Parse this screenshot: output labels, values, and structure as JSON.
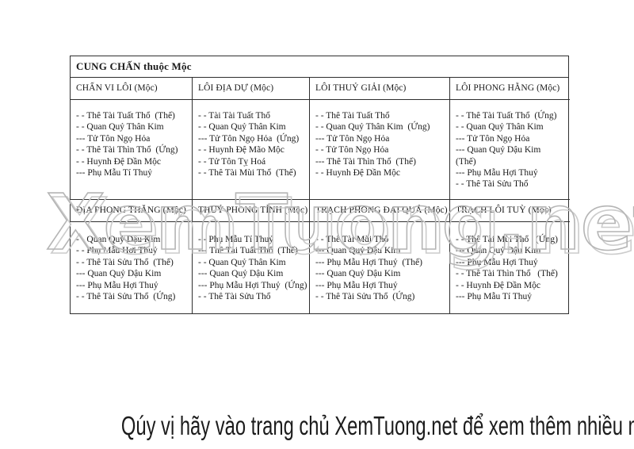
{
  "watermark": {
    "text": "XemTuong.net"
  },
  "footer": {
    "text": "Qúy vị hãy vào trang chủ XemTuong.net để xem thêm nhiều mục hay khác"
  },
  "table": {
    "title": "CUNG CHẤN thuộc Mộc",
    "rows": [
      {
        "cells": [
          {
            "header": "CHẤN VI LÔI (Mộc)",
            "lines": [
              "- - Thê Tài Tuất Thổ  (Thế)",
              "- - Quan Quỷ Thân Kim",
              "--- Tử Tôn Ngọ Hỏa",
              "- - Thê Tài Thìn Thổ  (Ứng)",
              "- - Huynh Đệ Dần Mộc",
              "--- Phụ Mẫu Tí Thuỷ"
            ]
          },
          {
            "header": "LÔI ĐỊA DỰ (Mộc)",
            "lines": [
              "- - Tài Tài Tuất Thổ",
              "- - Quan Quỷ Thân Kim",
              "--- Tử Tôn Ngọ Hỏa  (Ứng)",
              "- - Huynh Đệ Mão Mộc",
              "- - Tử Tôn Tỵ Hoá",
              "- - Thê Tài Mùi Thổ  (Thế)"
            ]
          },
          {
            "header": "LÔI THUỶ GIẢI (Mộc)",
            "lines": [
              "- - Thê Tài Tuất Thổ",
              "- - Quan Quỷ Thân Kim  (Ứng)",
              "--- Tử Tôn Ngọ Hỏa",
              "- - Tử Tôn Ngọ Hỏa",
              "--- Thê Tài Thìn Thổ  (Thế)",
              "- - Huynh Đệ Dần Mộc"
            ]
          },
          {
            "header": "LÔI PHONG HẰNG (Mộc)",
            "lines": [
              "- - Thê Tài Tuất Thổ  (Ứng)",
              "- - Quan Quỷ Thân Kim",
              "--- Tử Tôn Ngọ Hỏa",
              "--- Quan Quỷ Dậu Kim",
              "(Thế)",
              "--- Phụ Mẫu Hợi Thuỷ",
              "- - Thê Tài Sửu Thổ"
            ]
          }
        ]
      },
      {
        "cells": [
          {
            "header": "ĐỊA PHONG THĂNG (Mộc)",
            "lines": [
              "- - Quan Quỷ Dậu Kim",
              "- - Phụ Mẫu Hợi Thuỷ",
              "- - Thê Tài Sửu Thổ  (Thế)",
              "--- Quan Quỷ Dậu Kim",
              "--- Phụ Mẫu Hợi Thuỷ",
              "- - Thê Tài Sửu Thổ  (Ứng)"
            ]
          },
          {
            "header": "THUỶ PHONG TỈNH (Mộc)",
            "lines": [
              "- - Phụ Mẫu Tí Thuỷ",
              "--- Thê Tài Tuất Thổ  (Thế)",
              "- - Quan Quỷ Thân Kim",
              "--- Quan Quỷ Dậu Kim",
              "--- Phụ Mẫu Hợi Thuỷ  (Ứng)",
              "- - Thê Tài Sửu Thổ"
            ]
          },
          {
            "header": "TRẠCH PHONG ĐẠI QUÁ (Mộc)",
            "lines": [
              "- - Thê Tài Mùi Thổ",
              "--- Quan Quỷ Dậu Kim",
              "--- Phụ Mẫu Hợi Thuỷ  (Thế)",
              "--- Quan Quỷ Dậu Kim",
              "--- Phụ Mẫu Hợi Thuỷ",
              "- - Thê Tài Sửu Thổ  (Ứng)"
            ]
          },
          {
            "header": "TRẠCH LÔI TUỲ (Mộc)",
            "lines": [
              "- - Thê Tài Mùi Thổ   (Ứng)",
              "--- Quan Quỷ Dậu Kim",
              "--- Phụ Mẫu Hợi Thuỷ",
              "- - Thê Tài Thìn Thổ   (Thế)",
              "- - Huynh Đệ Dần Mộc",
              "--- Phụ Mẫu Tí Thuỷ"
            ]
          }
        ]
      }
    ]
  }
}
